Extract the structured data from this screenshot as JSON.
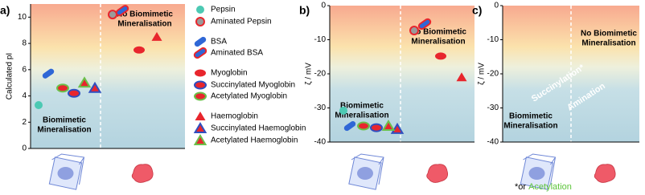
{
  "chart_data": [
    {
      "type": "scatter",
      "panel_label": "a)",
      "y_label": "Calculated pI",
      "ylim": [
        0,
        11
      ],
      "yticks": [
        0,
        2,
        4,
        6,
        8,
        10
      ],
      "regions": [
        [
          "Biomimetic",
          "Mineralisation"
        ],
        [
          "No Biomimetic",
          "Mineralisation"
        ]
      ],
      "series": [
        {
          "name": "Pepsin",
          "color": "#4cc9b3",
          "marker": "circle",
          "values": [
            3.3
          ]
        },
        {
          "name": "Aminated Pepsin",
          "color": "#9a9a9a",
          "edge": "#e8262d",
          "marker": "circle",
          "values": [
            10.2
          ]
        },
        {
          "name": "BSA",
          "color": "#2f67d6",
          "marker": "pill",
          "values": [
            5.7
          ]
        },
        {
          "name": "Aminated BSA",
          "color": "#2f67d6",
          "edge": "#e8262d",
          "marker": "pill",
          "values": [
            10.5
          ]
        },
        {
          "name": "Myoglobin",
          "color": "#e8262d",
          "marker": "oval",
          "values": [
            7.5
          ]
        },
        {
          "name": "Succinylated Myoglobin",
          "color": "#e8262d",
          "edge": "#2f4fc0",
          "marker": "oval",
          "values": [
            4.2
          ]
        },
        {
          "name": "Acetylated Myoglobin",
          "color": "#e8262d",
          "edge": "#6cc04a",
          "marker": "oval",
          "values": [
            4.6
          ]
        },
        {
          "name": "Haemoglobin",
          "color": "#e8262d",
          "marker": "triangle",
          "values": [
            8.5
          ]
        },
        {
          "name": "Succinylated Haemoglobin",
          "color": "#e8262d",
          "edge": "#2f4fc0",
          "marker": "triangle",
          "values": [
            4.6
          ]
        },
        {
          "name": "Acetylated Haemoglobin",
          "color": "#e8262d",
          "edge": "#6cc04a",
          "marker": "triangle",
          "values": [
            5.0
          ]
        }
      ]
    },
    {
      "type": "scatter",
      "panel_label": "b)",
      "y_label": "ζ / mV",
      "ylim": [
        -40,
        0
      ],
      "yticks": [
        -40,
        -30,
        -20,
        -10,
        0
      ],
      "regions": [
        [
          "Biomimetic",
          "Mineralisation"
        ],
        [
          "No Biomimetic",
          "Mineralisation"
        ]
      ],
      "series": [
        {
          "color": "#4cc9b3",
          "marker": "circle",
          "values": [
            -30.8
          ]
        },
        {
          "color": "#9a9a9a",
          "edge": "#e8262d",
          "marker": "circle",
          "values": [
            -7.3
          ]
        },
        {
          "color": "#2f67d6",
          "marker": "pill",
          "values": [
            -35.3
          ]
        },
        {
          "color": "#2f67d6",
          "edge": "#e8262d",
          "marker": "pill",
          "values": [
            -5.4
          ]
        },
        {
          "color": "#e8262d",
          "marker": "oval",
          "values": [
            -14.8
          ]
        },
        {
          "color": "#e8262d",
          "edge": "#2f4fc0",
          "marker": "oval",
          "values": [
            -35.8
          ]
        },
        {
          "color": "#e8262d",
          "edge": "#6cc04a",
          "marker": "oval",
          "values": [
            -35.3
          ]
        },
        {
          "color": "#e8262d",
          "marker": "triangle",
          "values": [
            -21
          ]
        },
        {
          "color": "#e8262d",
          "edge": "#2f4fc0",
          "marker": "triangle",
          "values": [
            -36.2
          ]
        },
        {
          "color": "#e8262d",
          "edge": "#6cc04a",
          "marker": "triangle",
          "values": [
            -35.3
          ]
        }
      ]
    },
    {
      "type": "schematic",
      "panel_label": "c)",
      "y_label": "ζ / mV",
      "ylim": [
        -40,
        0
      ],
      "yticks": [
        -40,
        -30,
        -20,
        -10,
        0
      ],
      "regions": [
        [
          "Biomimetic",
          "Mineralisation"
        ],
        [
          "No Biomimetic",
          "Mineralisation"
        ]
      ],
      "arrows": [
        "Succinylation*",
        "Amination"
      ],
      "footnote": [
        "*or",
        "Acetylation"
      ]
    }
  ]
}
